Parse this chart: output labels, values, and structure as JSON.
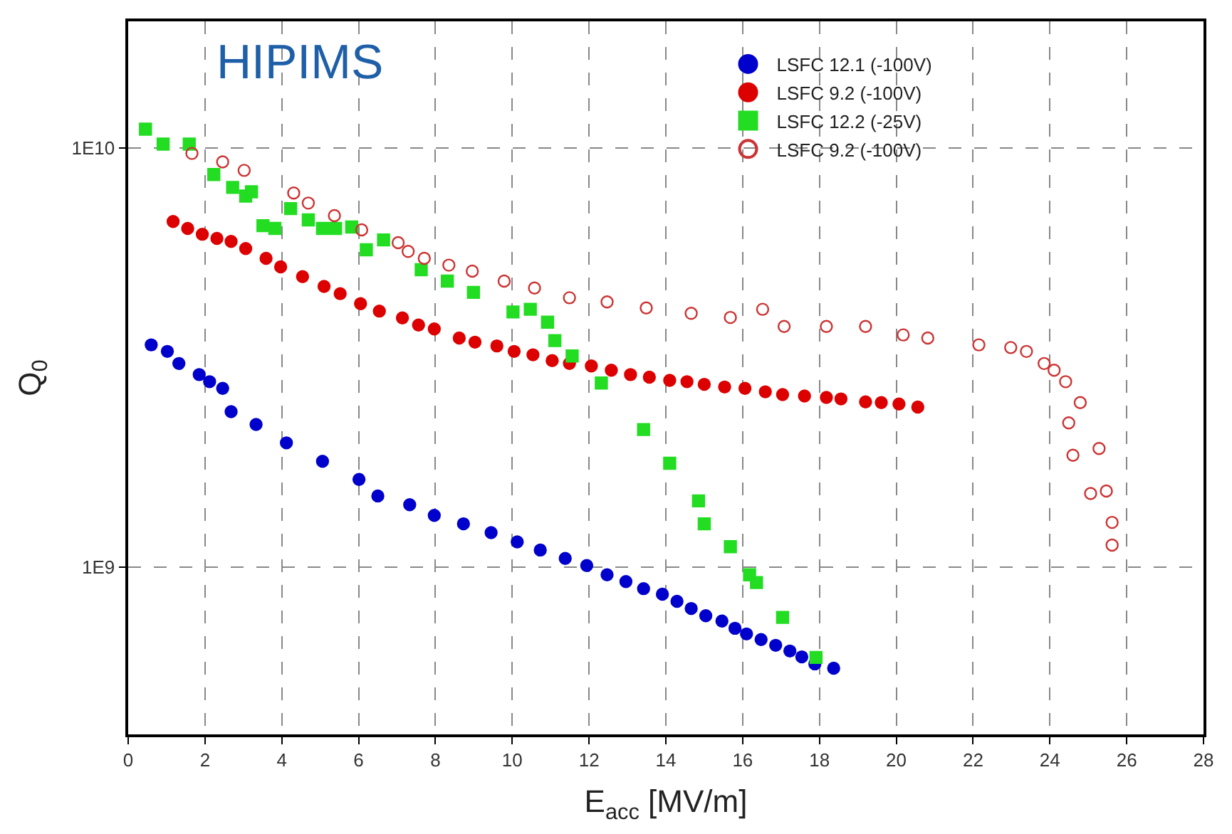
{
  "chart_data": {
    "type": "scatter",
    "xlabel": "E$_{acc}$ [MV/m]",
    "ylabel": "Q$_{0}$",
    "annotations": [
      "HIPIMS"
    ],
    "log": "y",
    "grid": true,
    "legend": "top right",
    "xlim": [
      0,
      28
    ],
    "xticks": [
      0,
      2,
      4,
      6,
      8,
      10,
      12,
      14,
      16,
      18,
      20,
      22,
      24,
      26,
      28
    ],
    "ylim": [
      400000000,
      20000000000
    ],
    "yticks": [
      {
        "value": 1000000000,
        "label": "1E9"
      },
      {
        "value": 10000000000,
        "label": "1E10"
      }
    ],
    "series": [
      {
        "name": "LSFC 12.1 (-100V)",
        "color": "#0000cc",
        "marker": "circle",
        "x": [
          0.6,
          1.02,
          1.32,
          1.85,
          2.12,
          2.46,
          2.68,
          3.33,
          4.12,
          5.06,
          6.01,
          6.5,
          7.33,
          7.97,
          8.73,
          9.45,
          10.13,
          10.73,
          11.38,
          11.94,
          12.47,
          12.96,
          13.42,
          13.91,
          14.29,
          14.66,
          15.04,
          15.46,
          15.8,
          16.1,
          16.48,
          16.86,
          17.23,
          17.54,
          17.88,
          18.37
        ],
        "values": [
          3390000000.0,
          3270000000.0,
          3060000000.0,
          2880000000.0,
          2770000000.0,
          2670000000.0,
          2350000000.0,
          2190000000.0,
          1980000000.0,
          1790000000.0,
          1620000000.0,
          1480000000.0,
          1410000000.0,
          1330000000.0,
          1270000000.0,
          1210000000.0,
          1150000000.0,
          1100000000.0,
          1050000000.0,
          1010000000.0,
          960000000.0,
          925000000.0,
          890000000.0,
          863000000.0,
          830000000.0,
          798000000.0,
          767000000.0,
          745000000.0,
          716000000.0,
          694000000.0,
          673000000.0,
          652000000.0,
          632000000.0,
          612000000.0,
          589000000.0,
          575000000.0
        ]
      },
      {
        "name": "LSFC 9.2 (-100V)",
        "color": "#dd0000",
        "marker": "circle",
        "x": [
          1.17,
          1.55,
          1.93,
          2.31,
          2.68,
          3.06,
          3.59,
          3.97,
          4.54,
          5.1,
          5.52,
          6.05,
          6.54,
          7.14,
          7.56,
          7.97,
          8.62,
          9.03,
          9.6,
          10.05,
          10.54,
          11.04,
          11.49,
          12.06,
          12.58,
          13.08,
          13.57,
          14.1,
          14.55,
          15.0,
          15.53,
          16.06,
          16.59,
          17.04,
          17.61,
          18.18,
          18.56,
          19.2,
          19.61,
          20.07,
          20.56
        ],
        "values": [
          6670000000.0,
          6420000000.0,
          6220000000.0,
          6080000000.0,
          5980000000.0,
          5750000000.0,
          5450000000.0,
          5200000000.0,
          4930000000.0,
          4670000000.0,
          4490000000.0,
          4250000000.0,
          4080000000.0,
          3930000000.0,
          3780000000.0,
          3700000000.0,
          3520000000.0,
          3440000000.0,
          3370000000.0,
          3270000000.0,
          3210000000.0,
          3110000000.0,
          3060000000.0,
          3020000000.0,
          2950000000.0,
          2880000000.0,
          2840000000.0,
          2790000000.0,
          2770000000.0,
          2730000000.0,
          2690000000.0,
          2670000000.0,
          2620000000.0,
          2580000000.0,
          2560000000.0,
          2540000000.0,
          2520000000.0,
          2480000000.0,
          2470000000.0,
          2450000000.0,
          2410000000.0
        ]
      },
      {
        "name": "LSFC 12.2 (-25V)",
        "color": "#22dd22",
        "marker": "square",
        "x": [
          0.45,
          0.91,
          1.59,
          2.23,
          2.72,
          3.06,
          3.21,
          3.51,
          3.82,
          4.23,
          4.69,
          5.06,
          5.4,
          5.82,
          6.2,
          6.65,
          7.63,
          8.31,
          8.99,
          10.02,
          10.47,
          10.92,
          11.11,
          11.56,
          12.32,
          13.42,
          14.1,
          14.85,
          15.0,
          15.68,
          16.18,
          16.36,
          17.04,
          17.91
        ],
        "values": [
          11070000000.0,
          10200000000.0,
          10200000000.0,
          8630000000.0,
          8040000000.0,
          7670000000.0,
          7850000000.0,
          6520000000.0,
          6420000000.0,
          7160000000.0,
          6730000000.0,
          6420000000.0,
          6420000000.0,
          6470000000.0,
          5710000000.0,
          6030000000.0,
          5120000000.0,
          4810000000.0,
          4520000000.0,
          4060000000.0,
          4120000000.0,
          3840000000.0,
          3470000000.0,
          3190000000.0,
          2750000000.0,
          2130000000.0,
          1770000000.0,
          1440000000.0,
          1270000000.0,
          1120000000.0,
          960000000.0,
          920000000.0,
          760000000.0,
          610000000.0
        ]
      },
      {
        "name": "LSFC 9.2 (-100V)",
        "color": "#cc3333",
        "marker": "circle-open",
        "x": [
          1.66,
          2.46,
          3.02,
          4.31,
          4.69,
          5.37,
          6.08,
          7.03,
          7.29,
          7.71,
          8.35,
          8.96,
          9.79,
          10.58,
          11.49,
          12.47,
          13.49,
          14.66,
          15.68,
          16.52,
          17.08,
          18.18,
          19.2,
          20.18,
          20.82,
          22.15,
          22.98,
          23.39,
          23.85,
          24.11,
          24.41,
          24.79,
          24.49,
          25.28,
          24.6,
          25.47,
          25.06,
          25.62,
          25.62
        ],
        "values": [
          9690000000.0,
          9250000000.0,
          8830000000.0,
          7800000000.0,
          7380000000.0,
          6890000000.0,
          6370000000.0,
          5940000000.0,
          5660000000.0,
          5450000000.0,
          5250000000.0,
          5080000000.0,
          4810000000.0,
          4630000000.0,
          4390000000.0,
          4290000000.0,
          4150000000.0,
          4030000000.0,
          3940000000.0,
          4120000000.0,
          3750000000.0,
          3750000000.0,
          3750000000.0,
          3580000000.0,
          3520000000.0,
          3390000000.0,
          3340000000.0,
          3270000000.0,
          3060000000.0,
          2950000000.0,
          2770000000.0,
          2470000000.0,
          2210000000.0,
          1920000000.0,
          1850000000.0,
          1520000000.0,
          1500000000.0,
          1280000000.0,
          1130000000.0
        ]
      }
    ]
  }
}
